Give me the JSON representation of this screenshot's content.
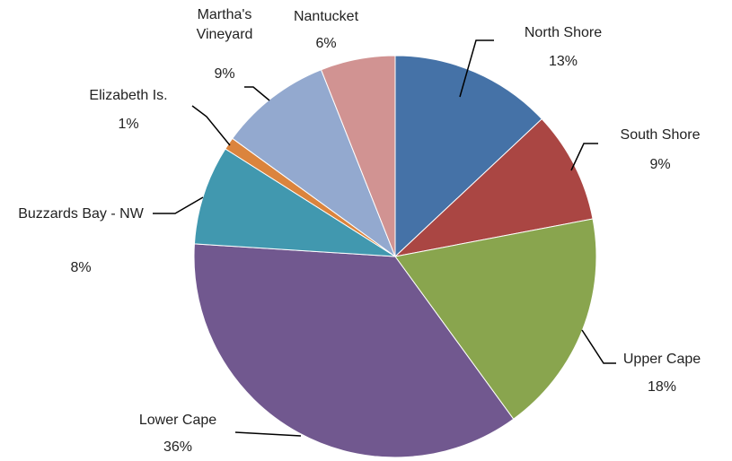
{
  "chart_data": {
    "type": "pie",
    "categories": [
      "North Shore",
      "South Shore",
      "Upper Cape",
      "Lower Cape",
      "Buzzards Bay - NW",
      "Elizabeth Is.",
      "Martha's Vineyard",
      "Nantucket"
    ],
    "values": [
      13,
      9,
      18,
      36,
      8,
      1,
      9,
      6
    ],
    "value_labels": [
      "13%",
      "9%",
      "18%",
      "36%",
      "8%",
      "1%",
      "9%",
      "6%"
    ],
    "colors": [
      "#4572a7",
      "#aa4643",
      "#89a54e",
      "#71588f",
      "#4198af",
      "#db843d",
      "#93a9cf",
      "#d19392"
    ]
  }
}
